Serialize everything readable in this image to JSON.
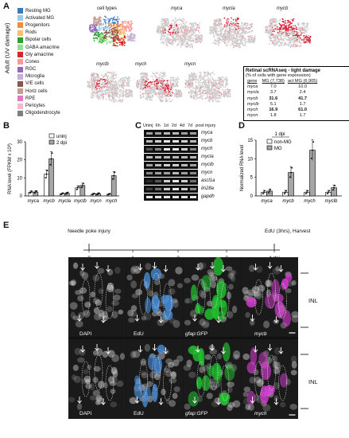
{
  "panelA": {
    "label": "A",
    "side_label": "Adult (UV damage)",
    "legend_title": "cell types",
    "legend": [
      {
        "name": "Resting MG",
        "color": "#3b78c4"
      },
      {
        "name": "Activated MG",
        "color": "#9ecae1"
      },
      {
        "name": "Progenitors",
        "color": "#f58b3c"
      },
      {
        "name": "Rods",
        "color": "#fdbf6f"
      },
      {
        "name": "Bipolar cells",
        "color": "#2ca02c"
      },
      {
        "name": "GABA amacrine",
        "color": "#98df8a"
      },
      {
        "name": "Gly amacrine",
        "color": "#d62728"
      },
      {
        "name": "Cones",
        "color": "#ff9896"
      },
      {
        "name": "RGC",
        "color": "#9467bd"
      },
      {
        "name": "Microglia",
        "color": "#c5b0d5"
      },
      {
        "name": "V/E cells",
        "color": "#8c564b"
      },
      {
        "name": "Horiz cells",
        "color": "#c49c94"
      },
      {
        "name": "RPE",
        "color": "#e377c2"
      },
      {
        "name": "Pericytes",
        "color": "#f7b6d2"
      },
      {
        "name": "Oligodendrocyte",
        "color": "#7f7f7f"
      }
    ],
    "plots": [
      "myca",
      "mycla",
      "mycb",
      "myclb",
      "mych",
      "mycn"
    ],
    "table": {
      "title1": "Retinal scRNAseq - light damage",
      "title2": "(% of cells with gene expression)",
      "headers": [
        "gene",
        "MG (7,738)",
        "act MG (6,905)"
      ],
      "rows": [
        {
          "gene": "myca",
          "mg": "7.0",
          "act": "10.0",
          "bold": false
        },
        {
          "gene": "mycla",
          "mg": "3.7",
          "act": "2.4",
          "bold": false
        },
        {
          "gene": "mycb",
          "mg": "31.6",
          "act": "41.7",
          "bold": true
        },
        {
          "gene": "myclb",
          "mg": "5.1",
          "act": "1.7",
          "bold": false
        },
        {
          "gene": "mych",
          "mg": "16.9",
          "act": "61.0",
          "bold": true
        },
        {
          "gene": "mycn",
          "mg": "1.8",
          "act": "1.7",
          "bold": false
        }
      ]
    }
  },
  "panelB": {
    "label": "B",
    "ylabel": "RNA level (FPKM x 10³)",
    "legend": [
      "uninj",
      "2 dpi"
    ],
    "genes": [
      "myca",
      "mycb",
      "mycla",
      "myclb",
      "mycn",
      "mych"
    ],
    "uninj": [
      2.1,
      12.0,
      1.2,
      4.5,
      1.0,
      0.9
    ],
    "dpi2": [
      2.2,
      20.5,
      1.5,
      5.8,
      1.2,
      11.2
    ],
    "yticks": [
      "0",
      "10",
      "20",
      "30"
    ]
  },
  "panelC": {
    "label": "C",
    "header": [
      "Uninj",
      "6h",
      "1d",
      "2d",
      "4d",
      "7d",
      "post injury"
    ],
    "genes": [
      "myca",
      "mycb",
      "mych",
      "mycla",
      "myclb",
      "mycn",
      "ascl1a",
      "lin28a",
      "gapdh"
    ]
  },
  "panelD": {
    "label": "D",
    "ylabel": "Normalized RNA level",
    "title": "1 dpi",
    "legend": [
      "non-MG",
      "MG"
    ],
    "genes": [
      "myca",
      "mycb",
      "mych",
      "myclb"
    ],
    "nonMG": [
      1.0,
      1.0,
      1.0,
      1.0
    ],
    "MG": [
      1.3,
      6.3,
      12.3,
      2.2
    ],
    "yticks": [
      "0",
      "5",
      "10",
      "15"
    ]
  },
  "panelE": {
    "label": "E",
    "timeline_start": "Needle poke injury",
    "timeline_end": "EdU (3hrs), Harvest",
    "ticks": [
      "0",
      "1",
      "2",
      "3",
      "4 dpi"
    ],
    "row1": [
      "DAPI",
      "EdU",
      "gfap:GFP",
      "mycb"
    ],
    "row2": [
      "DAPI",
      "EdU",
      "gfap:GFP",
      "mych"
    ],
    "inl": "INL"
  }
}
